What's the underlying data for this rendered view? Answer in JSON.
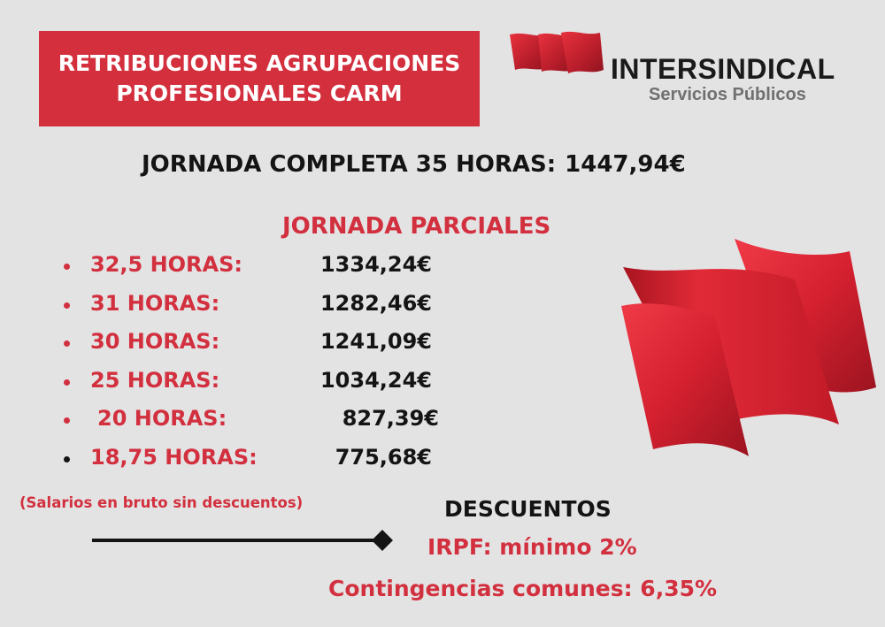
{
  "header": {
    "title_line1": "RETRIBUCIONES AGRUPACIONES",
    "title_line2": "PROFESIONALES CARM"
  },
  "logo": {
    "name": "INTERSINDICAL",
    "subtitle": "Servicios Públicos",
    "icon": "red-waving-flag-icon"
  },
  "full_time": {
    "label": "JORNADA COMPLETA 35 HORAS:",
    "value": "1447,94€"
  },
  "partials": {
    "heading": "JORNADA PARCIALES",
    "rows": [
      {
        "hours": "32,5 HORAS:",
        "amount": "1334,24€"
      },
      {
        "hours": "31 HORAS:",
        "amount": "1282,46€"
      },
      {
        "hours": "30 HORAS:",
        "amount": "1241,09€"
      },
      {
        "hours": "25 HORAS:",
        "amount": "1034,24€"
      },
      {
        "hours": "20 HORAS:",
        "amount": "827,39€"
      },
      {
        "hours": "18,75 HORAS:",
        "amount": "775,68€"
      }
    ]
  },
  "note": "(Salarios en bruto sin descuentos)",
  "discounts": {
    "heading": "DESCUENTOS",
    "irpf": "IRPF: mínimo 2%",
    "contingencias": "Contingencias comunes: 6,35%"
  },
  "colors": {
    "accent": "#d32f3d",
    "background": "#e4e3e4",
    "text_dark": "#141414"
  }
}
